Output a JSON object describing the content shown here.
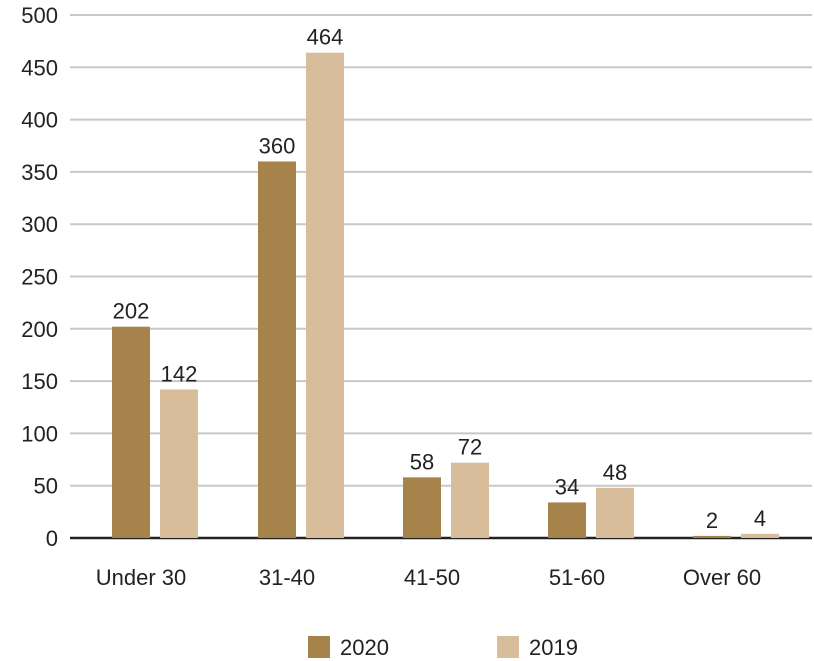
{
  "chart_data": {
    "type": "bar",
    "categories": [
      "Under 30",
      "31-40",
      "41-50",
      "51-60",
      "Over 60"
    ],
    "series": [
      {
        "name": "2020",
        "values": [
          202,
          360,
          58,
          34,
          2
        ],
        "color": "#a6834a"
      },
      {
        "name": "2019",
        "values": [
          142,
          464,
          72,
          48,
          4
        ],
        "color": "#d7bd9b"
      }
    ],
    "ylim": [
      0,
      500
    ],
    "yticks": [
      "0",
      "50",
      "100",
      "150",
      "200",
      "250",
      "300",
      "350",
      "400",
      "450",
      "500"
    ],
    "grid": true,
    "legend_position": "bottom-center",
    "data_labels": true,
    "title": "",
    "xlabel": "",
    "ylabel": ""
  }
}
